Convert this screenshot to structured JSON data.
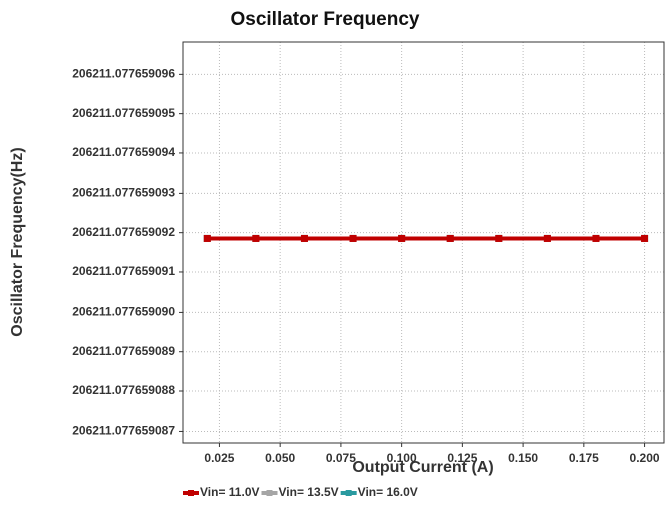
{
  "chart_data": {
    "type": "line",
    "title": "Oscillator Frequency",
    "x_label": "Output Current (A)",
    "y_label": "Oscillator Frequency(Hz)",
    "x": [
      0.02,
      0.04,
      0.06,
      0.08,
      0.1,
      0.12,
      0.14,
      0.16,
      0.18,
      0.2
    ],
    "series": [
      {
        "name": "Vin= 11.0V",
        "color": "#c00000",
        "values": [
          206211.07765909185,
          206211.07765909185,
          206211.07765909185,
          206211.07765909185,
          206211.07765909185,
          206211.07765909185,
          206211.07765909185,
          206211.07765909185,
          206211.07765909185,
          206211.07765909185
        ]
      },
      {
        "name": "Vin= 13.5V",
        "color": "#a6a6a6",
        "values": [
          206211.07765909185,
          206211.07765909185,
          206211.07765909185,
          206211.07765909185,
          206211.07765909185,
          206211.07765909185,
          206211.07765909185,
          206211.07765909185,
          206211.07765909185,
          206211.07765909185
        ]
      },
      {
        "name": "Vin= 16.0V",
        "color": "#2a9aa0",
        "values": [
          206211.07765909185,
          206211.07765909185,
          206211.07765909185,
          206211.07765909185,
          206211.07765909185,
          206211.07765909185,
          206211.07765909185,
          206211.07765909185,
          206211.07765909185,
          206211.07765909185
        ]
      }
    ],
    "xlim": [
      0.01,
      0.208
    ],
    "xticks": [
      0.025,
      {
        "value": 0.05,
        "label": "0.050"
      },
      0.075,
      {
        "value": 0.1,
        "label": "0.100"
      },
      0.125,
      {
        "value": 0.15,
        "label": "0.150"
      },
      0.175,
      {
        "value": 0.2,
        "label": "0.200"
      }
    ],
    "ylim": [
      206211.0776590867,
      206211.0776590968
    ],
    "yticks": [
      {
        "value": 206211.077659087,
        "label": "206211.077659087"
      },
      {
        "value": 206211.077659088,
        "label": "206211.077659088"
      },
      {
        "value": 206211.077659089,
        "label": "206211.077659089"
      },
      {
        "value": 206211.07765909,
        "label": "206211.077659090"
      },
      {
        "value": 206211.077659091,
        "label": "206211.077659091"
      },
      {
        "value": 206211.077659092,
        "label": "206211.077659092"
      },
      {
        "value": 206211.077659093,
        "label": "206211.077659093"
      },
      {
        "value": 206211.077659094,
        "label": "206211.077659094"
      },
      {
        "value": 206211.077659095,
        "label": "206211.077659095"
      },
      {
        "value": 206211.077659096,
        "label": "206211.077659096"
      }
    ],
    "grid": true,
    "legend": "bottom"
  }
}
